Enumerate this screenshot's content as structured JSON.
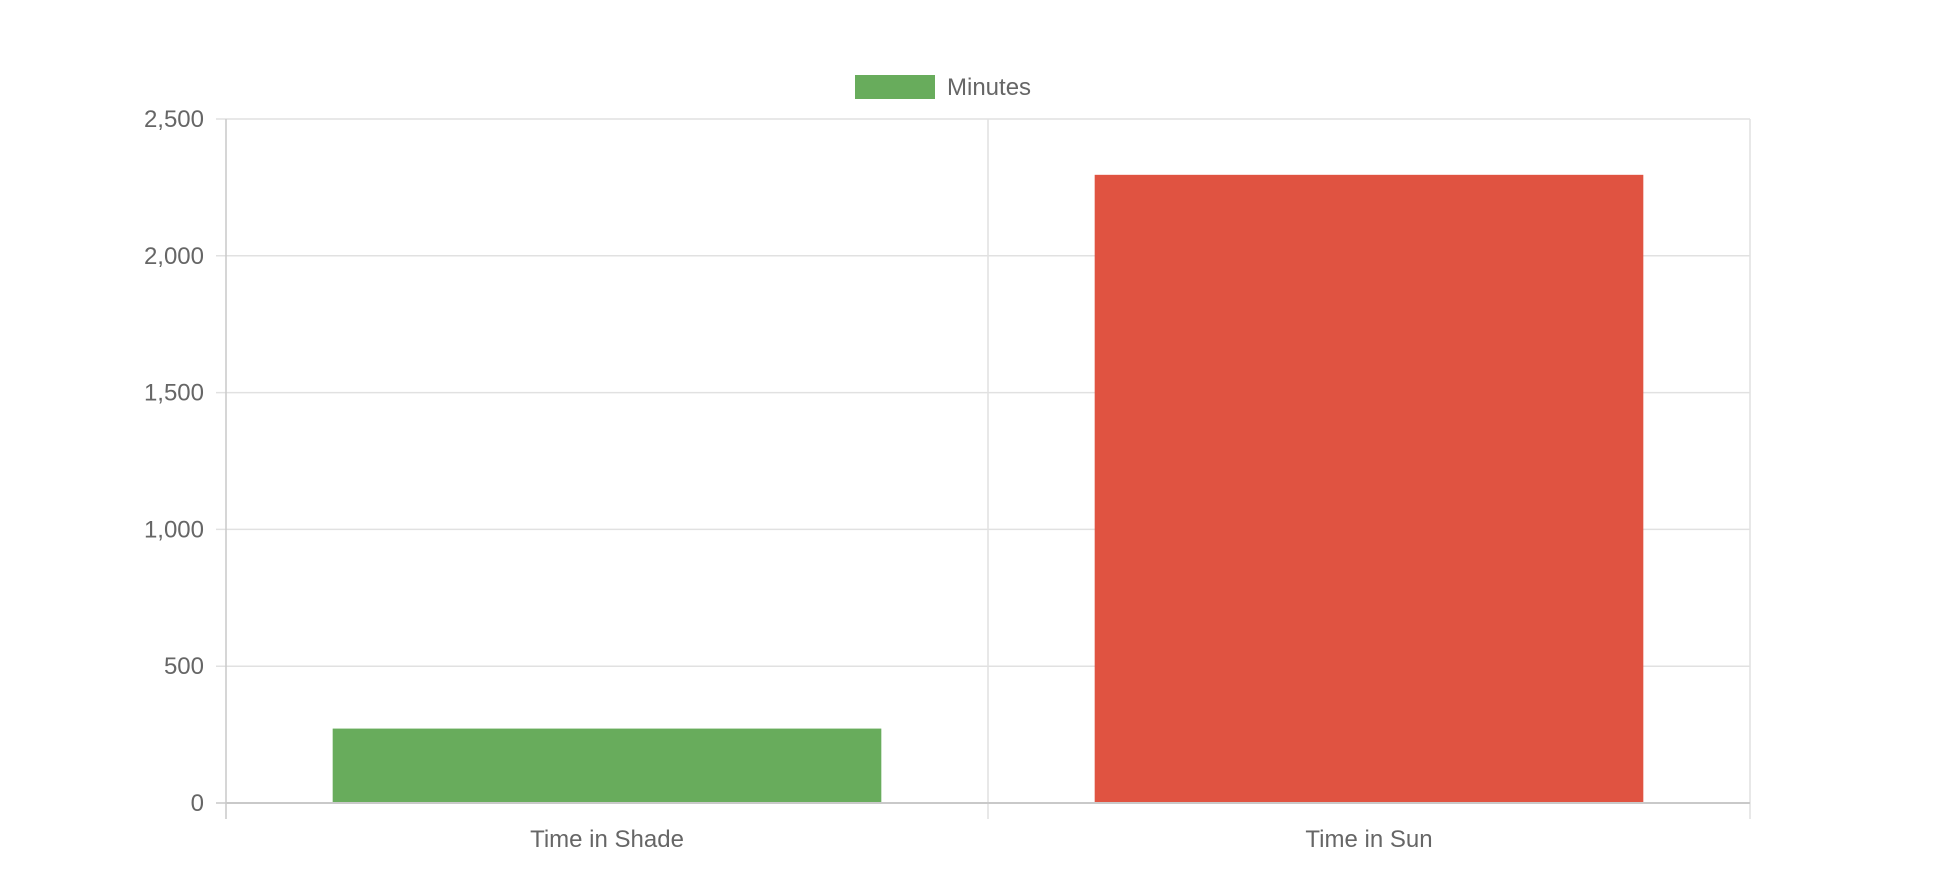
{
  "chart_data": {
    "type": "bar",
    "title": "",
    "xlabel": "",
    "ylabel": "",
    "categories": [
      "Time in Shade",
      "Time in Sun"
    ],
    "series": [
      {
        "name": "Minutes",
        "values": [
          272,
          2296
        ],
        "colors": [
          "#68ac5c",
          "#e05341"
        ]
      }
    ],
    "ylim": [
      0,
      2500
    ],
    "yticks": [
      0,
      500,
      1000,
      1500,
      2000,
      2500
    ],
    "ytick_labels": [
      "0",
      "500",
      "1,000",
      "1,500",
      "2,000",
      "2,500"
    ],
    "grid": true,
    "legend_position": "top",
    "legend_swatch_color": "#68ac5c",
    "gridline_color": "#e1e1e1",
    "axis_color": "#c9c9c9",
    "label_color": "#666666"
  }
}
